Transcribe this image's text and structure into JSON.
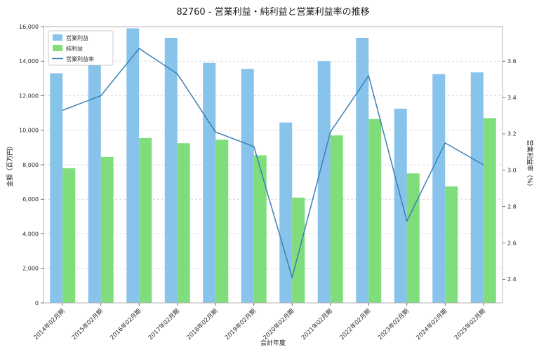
{
  "chart_data": {
    "type": "bar+line",
    "title": "82760 - 営業利益・純利益と営業利益率の推移",
    "xlabel": "会計年度",
    "ylabel_left": "金額（百万円）",
    "ylabel_right": "営業利益率（%）",
    "categories": [
      "2014年02月期",
      "2015年02月期",
      "2016年02月期",
      "2017年02月期",
      "2018年02月期",
      "2019年02月期",
      "2020年02月期",
      "2021年02月期",
      "2022年02月期",
      "2023年02月期",
      "2024年02月期",
      "2025年02月期"
    ],
    "series": [
      {
        "name": "営業利益",
        "type": "bar",
        "axis": "left",
        "color": "#87c3ea",
        "values": [
          13300,
          14100,
          15900,
          15350,
          13900,
          13550,
          10450,
          14000,
          15350,
          11250,
          13250,
          13350
        ]
      },
      {
        "name": "純利益",
        "type": "bar",
        "axis": "left",
        "color": "#80dd7c",
        "values": [
          7800,
          8450,
          9550,
          9250,
          9450,
          8550,
          6100,
          9700,
          10650,
          7500,
          6750,
          10700
        ]
      },
      {
        "name": "営業利益率",
        "type": "line",
        "axis": "right",
        "color": "#3b7fb5",
        "values": [
          3.33,
          3.41,
          3.67,
          3.53,
          3.21,
          3.13,
          2.41,
          3.21,
          3.52,
          2.72,
          3.15,
          3.03
        ]
      }
    ],
    "axes": {
      "left": {
        "min": 0,
        "max": 16000,
        "ticks": [
          0,
          2000,
          4000,
          6000,
          8000,
          10000,
          12000,
          14000,
          16000
        ],
        "format": "#,##0"
      },
      "right": {
        "min": 2.27,
        "max": 3.79,
        "ticks": [
          2.4,
          2.6,
          2.8,
          3.0,
          3.2,
          3.4,
          3.6
        ],
        "format": "0.0"
      }
    },
    "grid": {
      "horizontal": true,
      "style": "dashed"
    },
    "legend": {
      "position": "upper-left"
    }
  }
}
